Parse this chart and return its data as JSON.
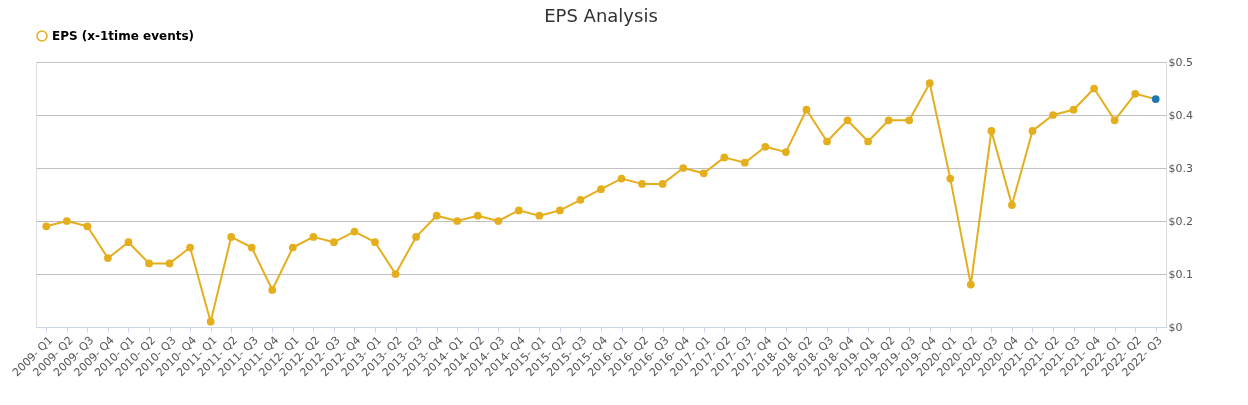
{
  "chart_data": {
    "type": "line",
    "title": "EPS Analysis",
    "categories": [
      "2009- Q1",
      "2009- Q2",
      "2009- Q3",
      "2009- Q4",
      "2010- Q1",
      "2010- Q2",
      "2010- Q3",
      "2010- Q4",
      "2011- Q1",
      "2011- Q2",
      "2011- Q3",
      "2011- Q4",
      "2012- Q1",
      "2012- Q2",
      "2012- Q3",
      "2012- Q4",
      "2013- Q1",
      "2013- Q2",
      "2013- Q3",
      "2013- Q4",
      "2014- Q1",
      "2014- Q2",
      "2014- Q3",
      "2014- Q4",
      "2015- Q1",
      "2015- Q2",
      "2015- Q3",
      "2015- Q4",
      "2016- Q1",
      "2016- Q2",
      "2016- Q3",
      "2016- Q4",
      "2017- Q1",
      "2017- Q2",
      "2017- Q3",
      "2017- Q4",
      "2018- Q1",
      "2018- Q2",
      "2018- Q3",
      "2018- Q4",
      "2019- Q1",
      "2019- Q2",
      "2019- Q3",
      "2019- Q4",
      "2020- Q1",
      "2020- Q2",
      "2020- Q3",
      "2020- Q4",
      "2021- Q1",
      "2021- Q2",
      "2021- Q3",
      "2021- Q4",
      "2022- Q1",
      "2022- Q2",
      "2022- Q3"
    ],
    "series": [
      {
        "name": "EPS (x-1time events)",
        "color": "#e5ae1d",
        "values": [
          0.19,
          0.2,
          0.19,
          0.13,
          0.16,
          0.12,
          0.12,
          0.15,
          0.01,
          0.17,
          0.15,
          0.07,
          0.15,
          0.17,
          0.16,
          0.18,
          0.16,
          0.1,
          0.17,
          0.21,
          0.2,
          0.21,
          0.2,
          0.22,
          0.21,
          0.22,
          0.24,
          0.26,
          0.28,
          0.27,
          0.27,
          0.3,
          0.29,
          0.32,
          0.31,
          0.34,
          0.33,
          0.41,
          0.35,
          0.39,
          0.35,
          0.39,
          0.39,
          0.46,
          0.28,
          0.08,
          0.37,
          0.23,
          0.37,
          0.4,
          0.41,
          0.45,
          0.39,
          0.44,
          0.43
        ],
        "colors": [
          "#e5ae1d",
          "#e5ae1d",
          "#e5ae1d",
          "#e5ae1d",
          "#e5ae1d",
          "#e5ae1d",
          "#e5ae1d",
          "#e5ae1d",
          "#e5ae1d",
          "#e5ae1d",
          "#e5ae1d",
          "#e5ae1d",
          "#e5ae1d",
          "#e5ae1d",
          "#e5ae1d",
          "#e5ae1d",
          "#e5ae1d",
          "#e5ae1d",
          "#e5ae1d",
          "#e5ae1d",
          "#e5ae1d",
          "#e5ae1d",
          "#e5ae1d",
          "#e5ae1d",
          "#e5ae1d",
          "#e5ae1d",
          "#e5ae1d",
          "#e5ae1d",
          "#e5ae1d",
          "#e5ae1d",
          "#e5ae1d",
          "#e5ae1d",
          "#e5ae1d",
          "#e5ae1d",
          "#e5ae1d",
          "#e5ae1d",
          "#e5ae1d",
          "#e5ae1d",
          "#e5ae1d",
          "#e5ae1d",
          "#e5ae1d",
          "#e5ae1d",
          "#e5ae1d",
          "#e5ae1d",
          "#e5ae1d",
          "#e5ae1d",
          "#e5ae1d",
          "#e5ae1d",
          "#e5ae1d",
          "#e5ae1d",
          "#e5ae1d",
          "#e5ae1d",
          "#e5ae1d",
          "#e5ae1d",
          "#1f77b4"
        ]
      }
    ],
    "ylim": [
      0,
      0.5
    ],
    "yticks": [
      {
        "value": 0,
        "label": "$0"
      },
      {
        "value": 0.1,
        "label": "$0.1"
      },
      {
        "value": 0.2,
        "label": "$0.2"
      },
      {
        "value": 0.3,
        "label": "$0.3"
      },
      {
        "value": 0.4,
        "label": "$0.4"
      },
      {
        "value": 0.5,
        "label": "$0.5"
      }
    ],
    "grid": "y",
    "legend": "top",
    "marker": "circle",
    "line_style": "solid"
  }
}
